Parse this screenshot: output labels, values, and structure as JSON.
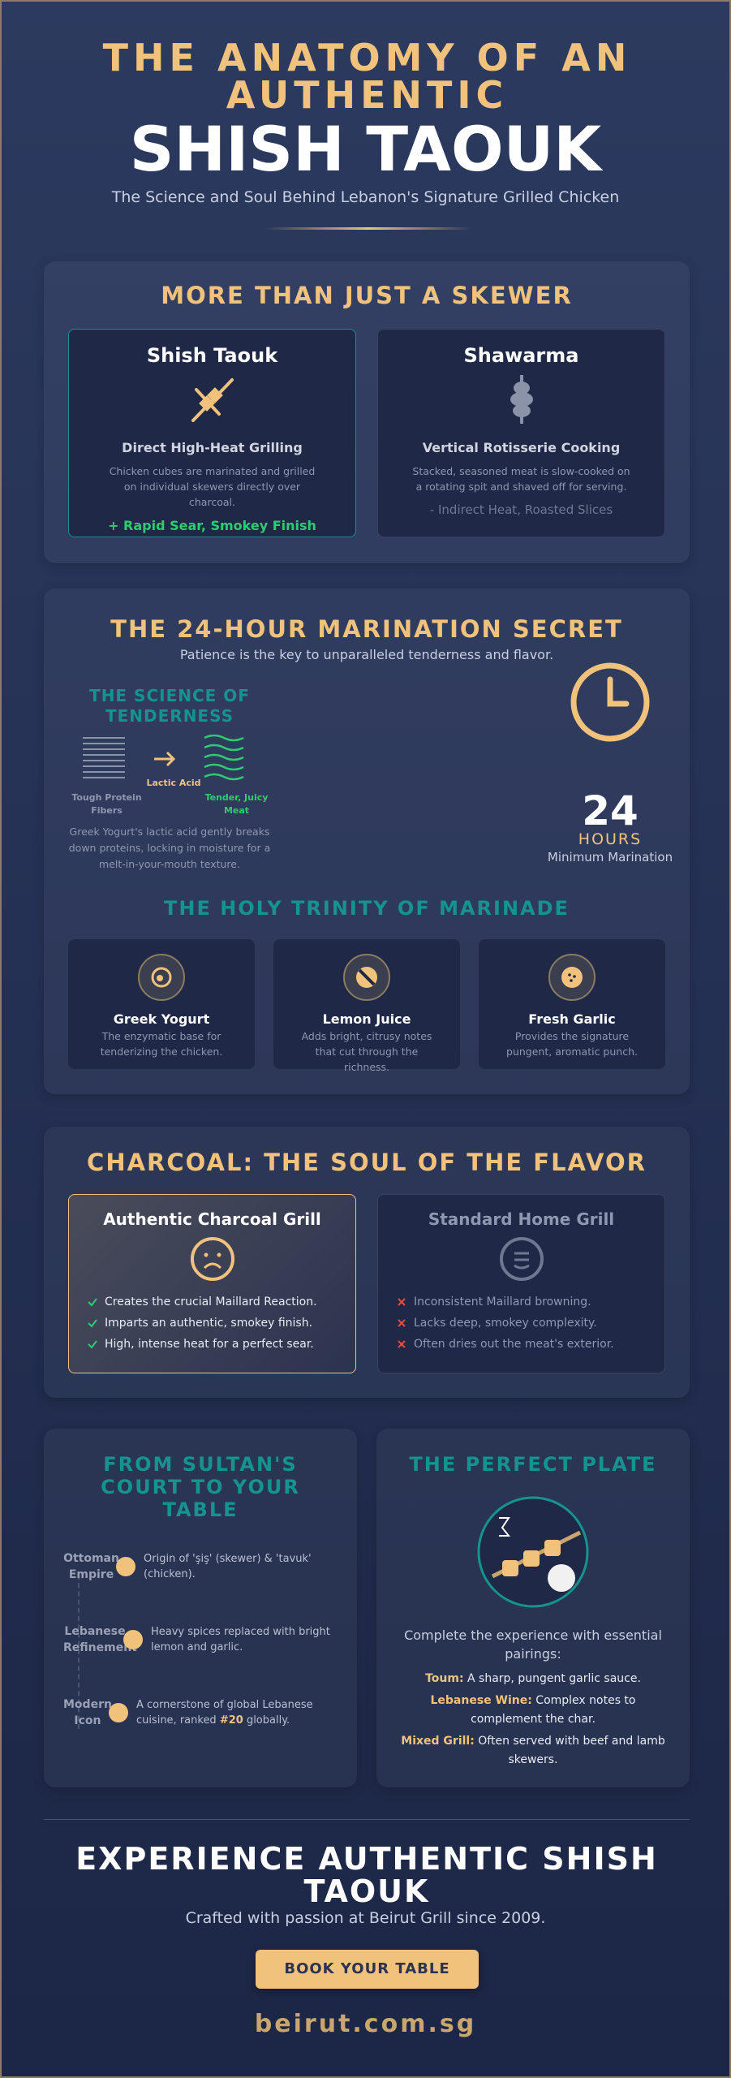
{
  "header": {
    "title_line1": "THE ANATOMY OF AN AUTHENTIC",
    "title_line2": "SHISH TAOUK",
    "subtitle": "The Science and Soul Behind Lebanon's Signature Grilled Chicken"
  },
  "comparison": {
    "title": "MORE THAN JUST A SKEWER",
    "cards": [
      {
        "name": "Shish Taouk",
        "method": "Direct High-Heat Grilling",
        "description": "Chicken cubes are marinated and grilled on individual skewers directly over charcoal.",
        "verdict": "+ Rapid Sear, Smokey Finish"
      },
      {
        "name": "Shawarma",
        "method": "Vertical Rotisserie Cooking",
        "description": "Stacked, seasoned meat is slow-cooked on a rotating spit and shaved off for serving.",
        "verdict": "- Indirect Heat, Roasted Slices"
      }
    ]
  },
  "marination": {
    "title": "THE 24-HOUR MARINATION SECRET",
    "subtitle": "Patience is the key to unparalleled tenderness and flavor.",
    "science": {
      "title": "THE SCIENCE OF TENDERNESS",
      "labels": [
        "Tough Protein Fibers",
        "Lactic Acid",
        "Tender, Juicy Meat"
      ],
      "description": "Greek Yogurt's lactic acid gently breaks down proteins, locking in moisture for a melt-in-your-mouth texture."
    },
    "clock": {
      "number": "24",
      "unit": "HOURS",
      "caption": "Minimum Marination"
    },
    "trinity": {
      "title": "THE HOLY TRINITY OF MARINADE",
      "items": [
        {
          "name": "Greek Yogurt",
          "description": "The enzymatic base for tenderizing the chicken."
        },
        {
          "name": "Lemon Juice",
          "description": "Adds bright, citrusy notes that cut through the richness."
        },
        {
          "name": "Fresh Garlic",
          "description": "Provides the signature pungent, aromatic punch."
        }
      ]
    }
  },
  "charcoal": {
    "title": "CHARCOAL: THE SOUL OF THE FLAVOR",
    "cards": [
      {
        "name": "Authentic Charcoal Grill",
        "points": [
          "Creates the crucial Maillard Reaction.",
          "Imparts an authentic, smokey finish.",
          "High, intense heat for a perfect sear."
        ]
      },
      {
        "name": "Standard Home Grill",
        "points": [
          "Inconsistent Maillard browning.",
          "Lacks deep, smokey complexity.",
          "Often dries out the meat's exterior."
        ]
      }
    ]
  },
  "history": {
    "title": "FROM SULTAN'S COURT TO YOUR TABLE",
    "items": [
      {
        "era": "Ottoman Empire",
        "text": "Origin of 'şiş' (skewer) & 'tavuk' (chicken)."
      },
      {
        "era": "Lebanese Refinement",
        "text": "Heavy spices replaced with bright lemon and garlic."
      },
      {
        "era": "Modern Icon",
        "text": "A cornerstone of global Lebanese cuisine, ranked ",
        "highlight": "#20",
        "text_after": " globally."
      }
    ]
  },
  "plate": {
    "title": "THE PERFECT PLATE",
    "intro": "Complete the experience with essential pairings:",
    "pairings": [
      {
        "label": "Toum:",
        "text": " A sharp, pungent garlic sauce."
      },
      {
        "label": "Lebanese Wine:",
        "text": " Complex notes to complement the char."
      },
      {
        "label": "Mixed Grill:",
        "text": " Often served with beef and lamb skewers."
      }
    ]
  },
  "footer": {
    "title": "EXPERIENCE AUTHENTIC SHISH TAOUK",
    "subtitle": "Crafted with passion at Beirut Grill since 2009.",
    "button": "BOOK YOUR TABLE",
    "url": "beirut.com.sg"
  }
}
